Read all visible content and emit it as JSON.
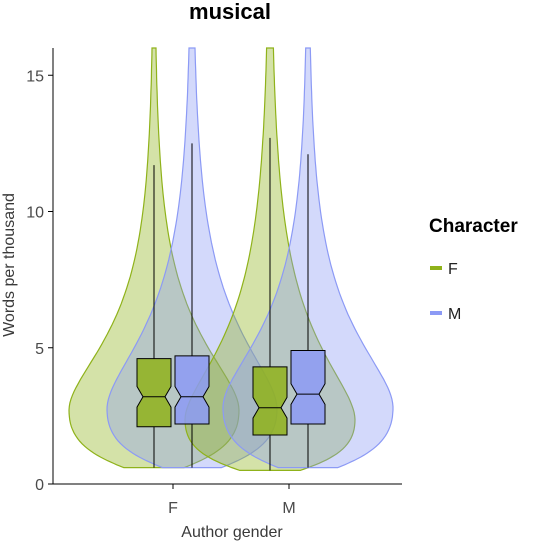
{
  "chart_data": {
    "type": "violin",
    "title": "musical",
    "xlabel": "Author gender",
    "ylabel": "Words per thousand",
    "categories": [
      "F",
      "M"
    ],
    "yticks": [
      0,
      5,
      10,
      15
    ],
    "ylim": [
      0,
      16
    ],
    "grid": false,
    "legend": {
      "title": "Character",
      "position": "right"
    },
    "series": [
      {
        "name": "F",
        "color": "#8fb21a",
        "stats": [
          {
            "category": "F",
            "min": 0.6,
            "q1": 2.1,
            "median": 3.2,
            "q3": 4.6,
            "whisker_high": 11.7,
            "max": 16.0
          },
          {
            "category": "M",
            "min": 0.5,
            "q1": 1.8,
            "median": 2.8,
            "q3": 4.3,
            "whisker_high": 12.7,
            "max": 16.0
          }
        ]
      },
      {
        "name": "M",
        "color": "#8c9af5",
        "stats": [
          {
            "category": "F",
            "min": 0.6,
            "q1": 2.2,
            "median": 3.2,
            "q3": 4.7,
            "whisker_high": 12.5,
            "max": 16.0
          },
          {
            "category": "M",
            "min": 0.6,
            "q1": 2.2,
            "median": 3.3,
            "q3": 4.9,
            "whisker_high": 12.1,
            "max": 16.0
          }
        ]
      }
    ]
  }
}
